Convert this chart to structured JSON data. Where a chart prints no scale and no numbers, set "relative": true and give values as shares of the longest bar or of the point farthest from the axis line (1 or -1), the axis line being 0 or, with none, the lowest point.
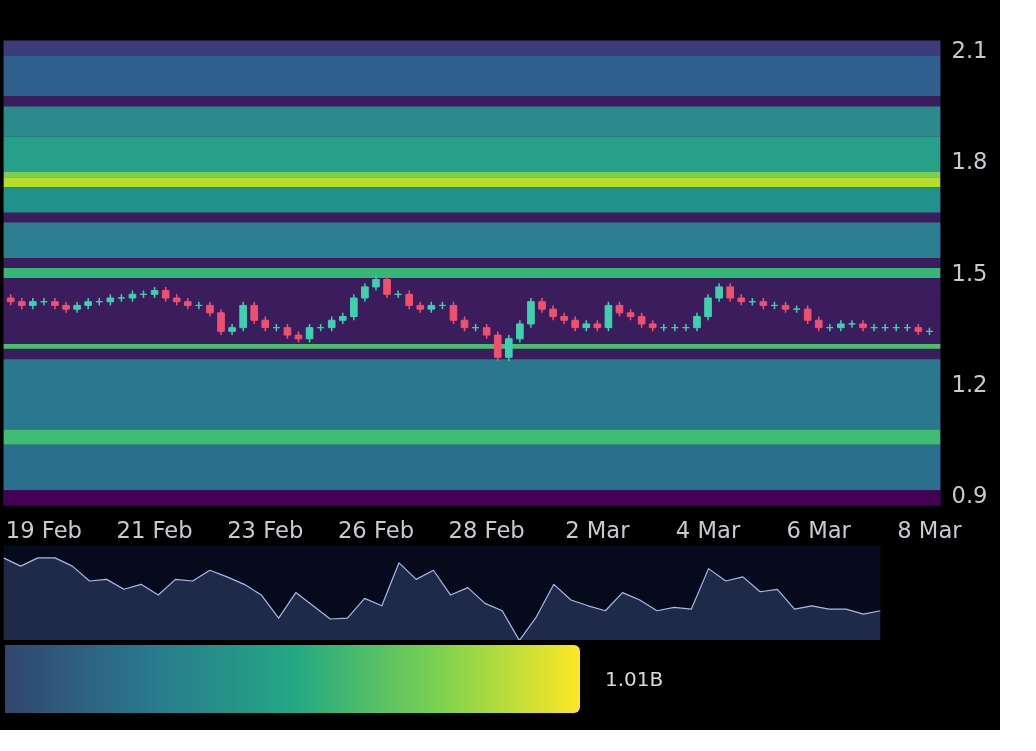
{
  "chart_data": [
    {
      "type": "candlestick",
      "categories": [
        null,
        null,
        null,
        "19 Feb",
        null,
        null,
        null,
        null,
        null,
        null,
        null,
        null,
        null,
        "21 Feb",
        null,
        null,
        null,
        null,
        null,
        null,
        null,
        null,
        null,
        "23 Feb",
        null,
        null,
        null,
        null,
        null,
        null,
        null,
        null,
        null,
        "26 Feb",
        null,
        null,
        null,
        null,
        null,
        null,
        null,
        null,
        null,
        "28 Feb",
        null,
        null,
        null,
        null,
        null,
        null,
        null,
        null,
        null,
        "2 Mar",
        null,
        null,
        null,
        null,
        null,
        null,
        null,
        null,
        null,
        "4 Mar",
        null,
        null,
        null,
        null,
        null,
        null,
        null,
        null,
        null,
        "6 Mar",
        null,
        null,
        null,
        null,
        null,
        null,
        null,
        null,
        null,
        "8 Mar"
      ],
      "ohlc": [
        [
          1.43,
          1.44,
          1.41,
          1.42
        ],
        [
          1.42,
          1.43,
          1.4,
          1.41
        ],
        [
          1.41,
          1.43,
          1.4,
          1.42
        ],
        [
          1.42,
          1.43,
          1.41,
          1.42
        ],
        [
          1.42,
          1.43,
          1.4,
          1.41
        ],
        [
          1.41,
          1.42,
          1.39,
          1.4
        ],
        [
          1.4,
          1.42,
          1.39,
          1.41
        ],
        [
          1.41,
          1.43,
          1.4,
          1.42
        ],
        [
          1.42,
          1.43,
          1.41,
          1.42
        ],
        [
          1.42,
          1.44,
          1.41,
          1.43
        ],
        [
          1.43,
          1.44,
          1.42,
          1.43
        ],
        [
          1.43,
          1.45,
          1.42,
          1.44
        ],
        [
          1.44,
          1.45,
          1.43,
          1.44
        ],
        [
          1.44,
          1.46,
          1.43,
          1.45
        ],
        [
          1.45,
          1.46,
          1.42,
          1.43
        ],
        [
          1.43,
          1.44,
          1.41,
          1.42
        ],
        [
          1.42,
          1.43,
          1.4,
          1.41
        ],
        [
          1.41,
          1.42,
          1.4,
          1.41
        ],
        [
          1.41,
          1.42,
          1.38,
          1.39
        ],
        [
          1.39,
          1.4,
          1.33,
          1.34
        ],
        [
          1.34,
          1.36,
          1.33,
          1.35
        ],
        [
          1.35,
          1.42,
          1.34,
          1.41
        ],
        [
          1.41,
          1.42,
          1.36,
          1.37
        ],
        [
          1.37,
          1.38,
          1.34,
          1.35
        ],
        [
          1.35,
          1.36,
          1.34,
          1.35
        ],
        [
          1.35,
          1.36,
          1.32,
          1.33
        ],
        [
          1.33,
          1.34,
          1.31,
          1.32
        ],
        [
          1.32,
          1.36,
          1.31,
          1.35
        ],
        [
          1.35,
          1.36,
          1.34,
          1.35
        ],
        [
          1.35,
          1.38,
          1.34,
          1.37
        ],
        [
          1.37,
          1.39,
          1.36,
          1.38
        ],
        [
          1.38,
          1.44,
          1.37,
          1.43
        ],
        [
          1.43,
          1.47,
          1.42,
          1.46
        ],
        [
          1.46,
          1.49,
          1.45,
          1.48
        ],
        [
          1.48,
          1.49,
          1.43,
          1.44
        ],
        [
          1.44,
          1.45,
          1.43,
          1.44
        ],
        [
          1.44,
          1.45,
          1.4,
          1.41
        ],
        [
          1.41,
          1.42,
          1.39,
          1.4
        ],
        [
          1.4,
          1.42,
          1.39,
          1.41
        ],
        [
          1.41,
          1.42,
          1.4,
          1.41
        ],
        [
          1.41,
          1.42,
          1.36,
          1.37
        ],
        [
          1.37,
          1.38,
          1.34,
          1.35
        ],
        [
          1.35,
          1.36,
          1.34,
          1.35
        ],
        [
          1.35,
          1.36,
          1.32,
          1.33
        ],
        [
          1.33,
          1.34,
          1.26,
          1.27
        ],
        [
          1.27,
          1.33,
          1.26,
          1.32
        ],
        [
          1.32,
          1.37,
          1.31,
          1.36
        ],
        [
          1.36,
          1.43,
          1.35,
          1.42
        ],
        [
          1.42,
          1.43,
          1.39,
          1.4
        ],
        [
          1.4,
          1.41,
          1.37,
          1.38
        ],
        [
          1.38,
          1.39,
          1.36,
          1.37
        ],
        [
          1.37,
          1.38,
          1.34,
          1.35
        ],
        [
          1.35,
          1.37,
          1.34,
          1.36
        ],
        [
          1.36,
          1.37,
          1.34,
          1.35
        ],
        [
          1.35,
          1.42,
          1.34,
          1.41
        ],
        [
          1.41,
          1.42,
          1.38,
          1.39
        ],
        [
          1.39,
          1.4,
          1.37,
          1.38
        ],
        [
          1.38,
          1.39,
          1.35,
          1.36
        ],
        [
          1.36,
          1.37,
          1.34,
          1.35
        ],
        [
          1.35,
          1.36,
          1.34,
          1.35
        ],
        [
          1.35,
          1.36,
          1.34,
          1.35
        ],
        [
          1.35,
          1.36,
          1.34,
          1.35
        ],
        [
          1.35,
          1.39,
          1.34,
          1.38
        ],
        [
          1.38,
          1.44,
          1.37,
          1.43
        ],
        [
          1.43,
          1.47,
          1.42,
          1.46
        ],
        [
          1.46,
          1.47,
          1.42,
          1.43
        ],
        [
          1.43,
          1.44,
          1.41,
          1.42
        ],
        [
          1.42,
          1.43,
          1.41,
          1.42
        ],
        [
          1.42,
          1.43,
          1.4,
          1.41
        ],
        [
          1.41,
          1.42,
          1.4,
          1.41
        ],
        [
          1.41,
          1.42,
          1.39,
          1.4
        ],
        [
          1.4,
          1.41,
          1.39,
          1.4
        ],
        [
          1.4,
          1.41,
          1.36,
          1.37
        ],
        [
          1.37,
          1.38,
          1.34,
          1.35
        ],
        [
          1.35,
          1.36,
          1.34,
          1.35
        ],
        [
          1.35,
          1.37,
          1.34,
          1.36
        ],
        [
          1.36,
          1.37,
          1.35,
          1.36
        ],
        [
          1.36,
          1.37,
          1.34,
          1.35
        ],
        [
          1.35,
          1.36,
          1.34,
          1.35
        ],
        [
          1.35,
          1.36,
          1.34,
          1.35
        ],
        [
          1.35,
          1.36,
          1.34,
          1.35
        ],
        [
          1.35,
          1.36,
          1.34,
          1.35
        ],
        [
          1.35,
          1.36,
          1.33,
          1.34
        ],
        [
          1.34,
          1.35,
          1.33,
          1.34
        ]
      ],
      "ylim": [
        0.87,
        2.125
      ],
      "yticks": [
        0.9,
        1.2,
        1.5,
        1.8,
        2.1
      ],
      "bands": [
        {
          "axis": "y",
          "from": 2.084,
          "to": 2.125,
          "color": "#3a3d7a"
        },
        {
          "axis": "y",
          "from": 1.975,
          "to": 2.084,
          "color": "#2f5f8c"
        },
        {
          "axis": "y",
          "from": 1.865,
          "to": 1.947,
          "color": "#2a8a8c"
        },
        {
          "axis": "y",
          "from": 1.77,
          "to": 1.865,
          "color": "#27a08a"
        },
        {
          "axis": "y",
          "from": 1.756,
          "to": 1.77,
          "color": "#7ccf52"
        },
        {
          "axis": "y",
          "from": 1.729,
          "to": 1.756,
          "color": "#b5de2b"
        },
        {
          "axis": "y",
          "from": 1.661,
          "to": 1.729,
          "color": "#21918c"
        },
        {
          "axis": "y",
          "from": 1.538,
          "to": 1.634,
          "color": "#2c7f8e"
        },
        {
          "axis": "y",
          "from": 1.484,
          "to": 1.511,
          "color": "#35b779"
        },
        {
          "axis": "y",
          "from": 1.293,
          "to": 1.306,
          "color": "#4ac16d"
        },
        {
          "axis": "y",
          "from": 1.075,
          "to": 1.265,
          "color": "#2a788e"
        },
        {
          "axis": "y",
          "from": 1.034,
          "to": 1.075,
          "color": "#3fbc73"
        },
        {
          "axis": "y",
          "from": 0.911,
          "to": 1.034,
          "color": "#2a6f8e"
        },
        {
          "axis": "y",
          "from": 0.87,
          "to": 0.911,
          "color": "#440154"
        }
      ]
    },
    {
      "type": "area",
      "relative": true,
      "color": "#a9b8e8",
      "categories": [
        null,
        null,
        null,
        null,
        null,
        null,
        null,
        null,
        null,
        null,
        null,
        null,
        null,
        null,
        null,
        null,
        null,
        null,
        null,
        null,
        null,
        null,
        null,
        null,
        null,
        null,
        null,
        null,
        null,
        null,
        null,
        null,
        null,
        null,
        null,
        null,
        null,
        null,
        null,
        null,
        null,
        null,
        null,
        null,
        null,
        null,
        null,
        null,
        null,
        null,
        null,
        null
      ],
      "values": [
        1.0,
        0.9,
        1.0,
        1.0,
        0.9,
        0.72,
        0.74,
        0.62,
        0.68,
        0.55,
        0.74,
        0.72,
        0.85,
        0.77,
        0.68,
        0.55,
        0.27,
        0.58,
        0.42,
        0.26,
        0.27,
        0.51,
        0.42,
        0.94,
        0.74,
        0.85,
        0.55,
        0.64,
        0.45,
        0.36,
        0,
        0.29,
        0.68,
        0.49,
        0.42,
        0.36,
        0.58,
        0.49,
        0.36,
        0.4,
        0.38,
        0.87,
        0.72,
        0.77,
        0.59,
        0.62,
        0.38,
        0.42,
        0.38,
        0.38,
        0.32,
        0.36
      ]
    },
    {
      "type": "other",
      "annotations": [
        "1.01B"
      ]
    }
  ]
}
